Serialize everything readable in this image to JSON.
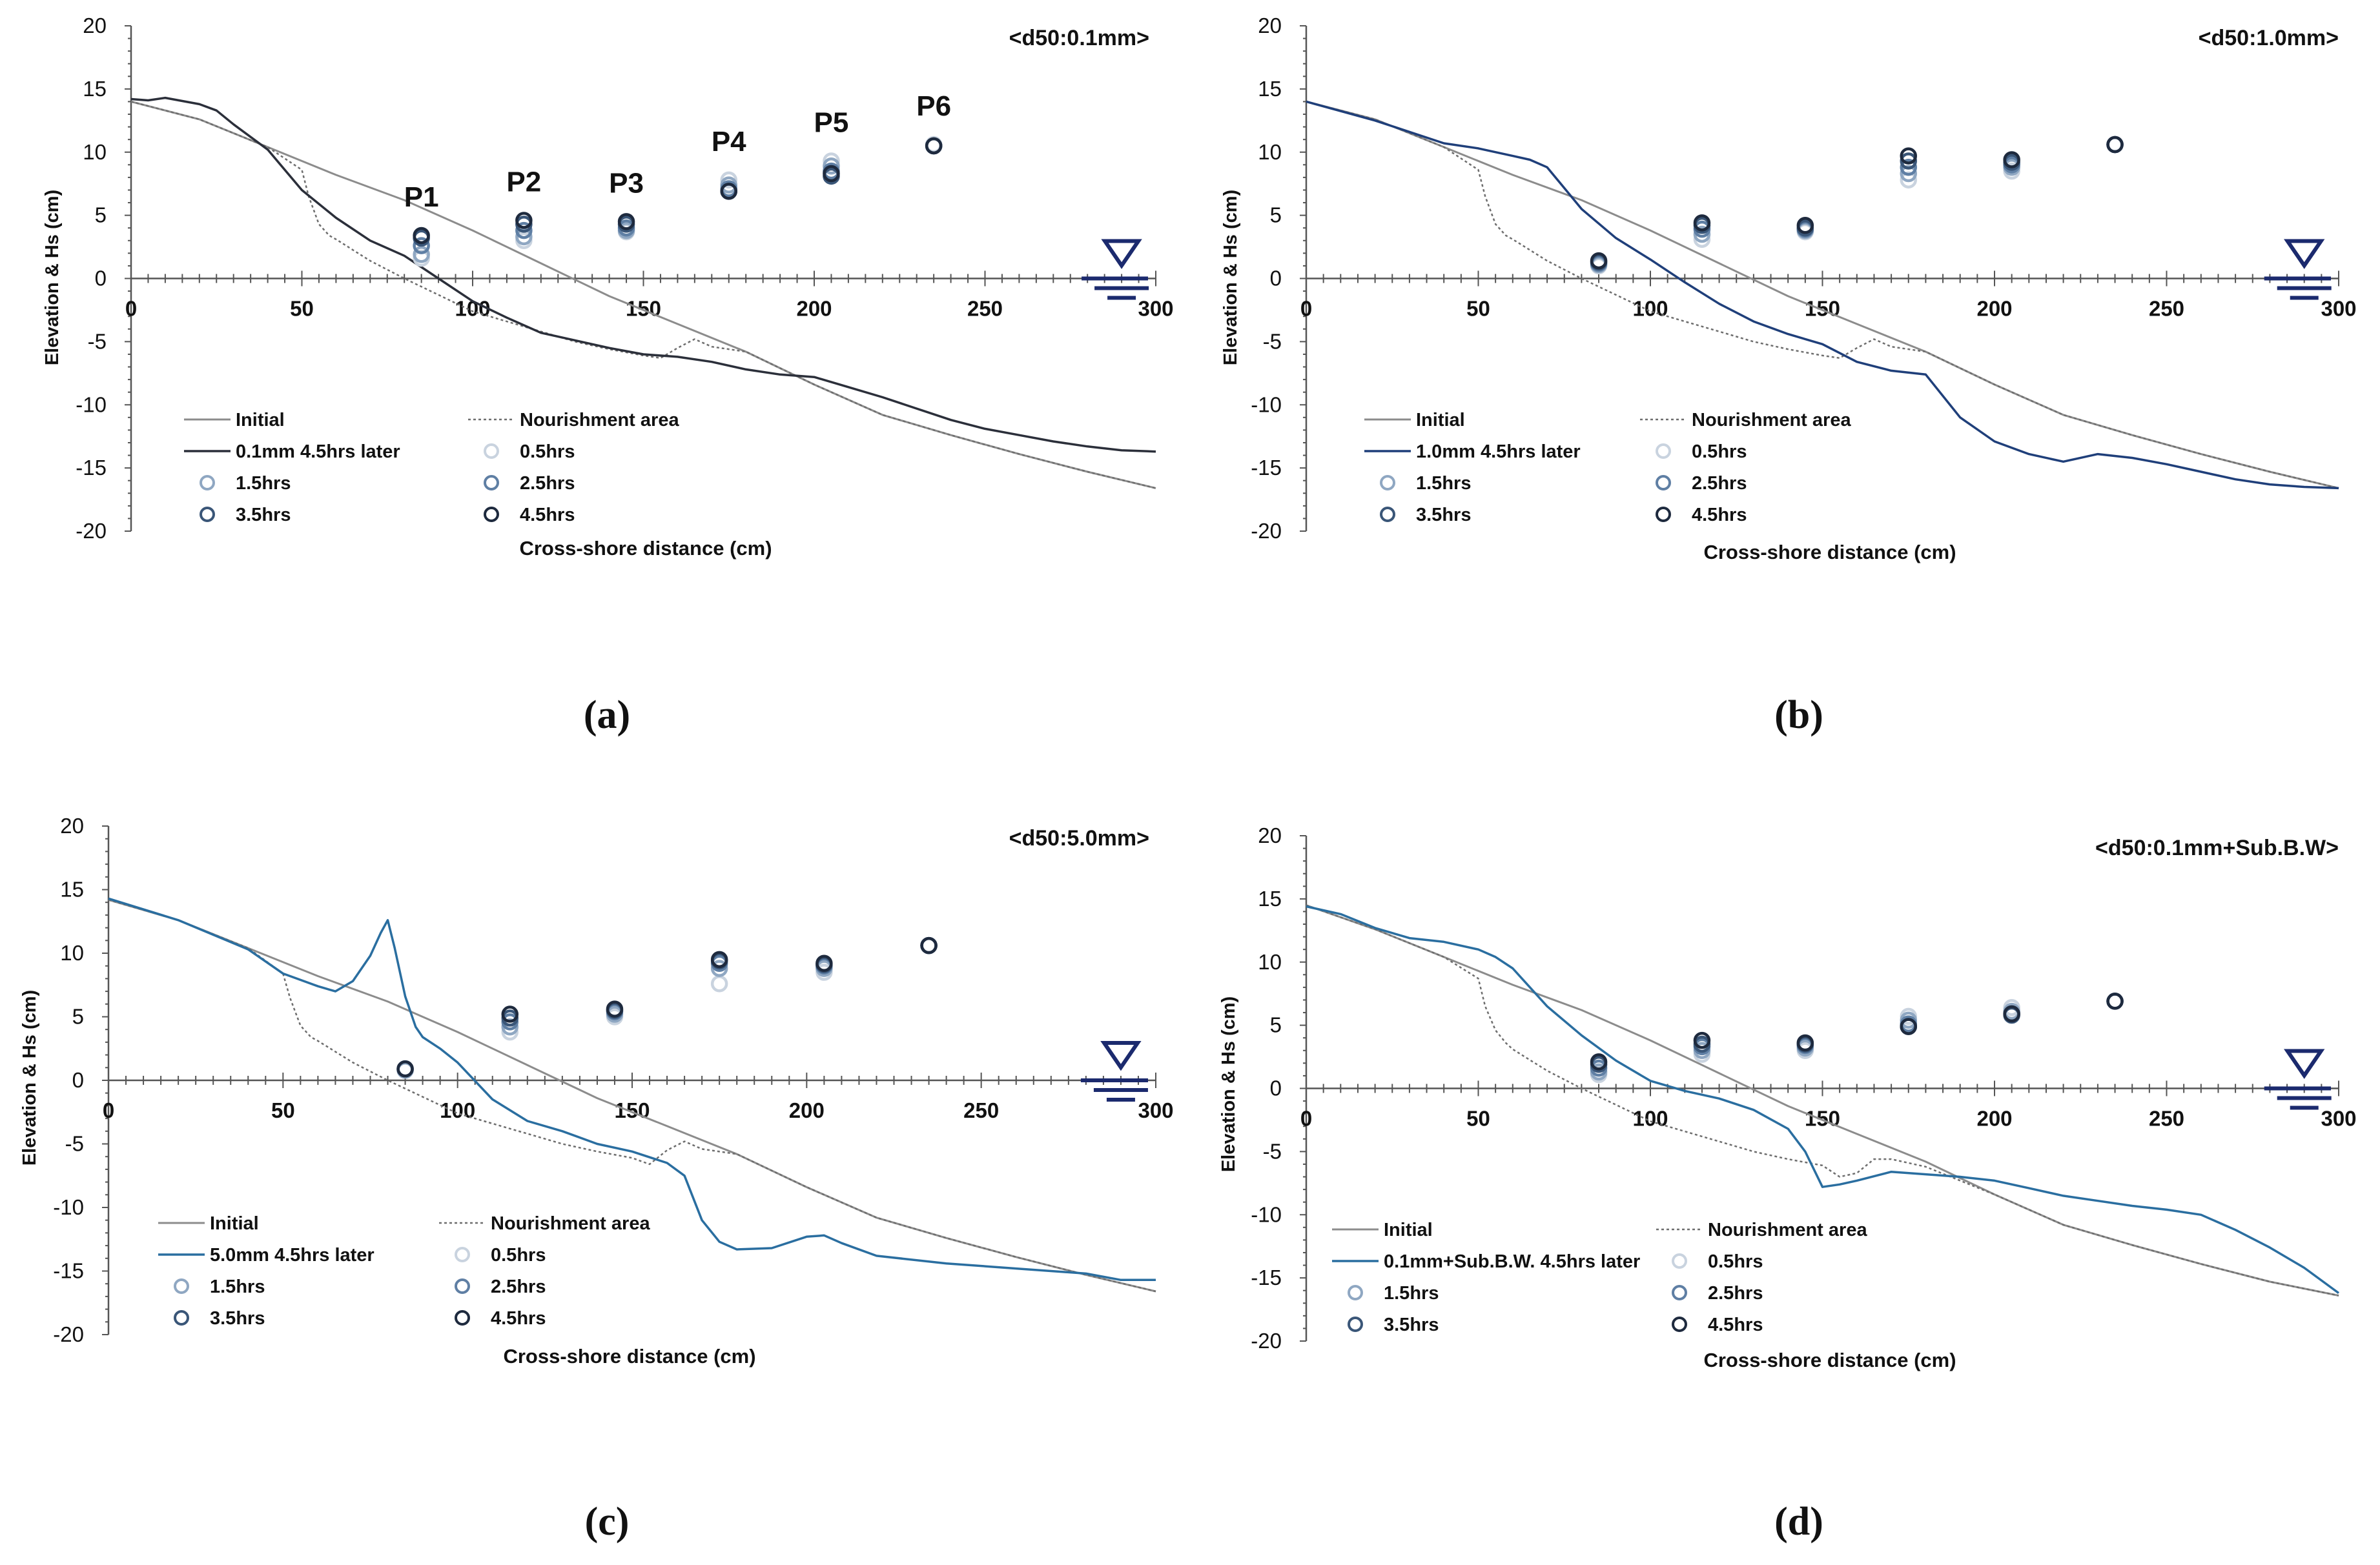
{
  "figure": {
    "yaxis_label": "Elevation & Hs (cm)",
    "xaxis_label": "Cross-shore distance (cm)",
    "xlim": [
      0,
      300
    ],
    "ylim": [
      -20,
      20
    ],
    "xticks": [
      0,
      50,
      100,
      150,
      200,
      250,
      300
    ],
    "yticks": [
      20,
      15,
      10,
      5,
      0,
      -5,
      -10,
      -15,
      -20
    ],
    "station_labels": [
      "P1",
      "P2",
      "P3",
      "P4",
      "P5",
      "P6"
    ],
    "legend_time_labels": [
      "0.5hrs",
      "1.5hrs",
      "2.5hrs",
      "3.5hrs",
      "4.5hrs"
    ],
    "legend_initial_label": "Initial",
    "legend_nourishment_label": "Nourishment area"
  },
  "colors": {
    "initial": "#8c8c8c",
    "nourishment": "#6e6e6e",
    "axis": "#555555",
    "profile_a": "#2b2f3a",
    "profile_blue": "#1f3f7a",
    "profile_teal": "#2a6ea0",
    "water_symbol": "#1b2a6e",
    "marker_colors": [
      "#c9d3df",
      "#8fa7c2",
      "#5f7fa4",
      "#3a5678",
      "#1e2a3e"
    ]
  },
  "chart_data": [
    {
      "type": "line",
      "panel_label": "(a)",
      "title": "<d50:0.1mm>",
      "profile_legend": "0.1mm 4.5hrs later",
      "profile_color_key": "profile_a",
      "show_station_labels": true,
      "series": [
        {
          "name": "Initial",
          "x": [
            0,
            20,
            40,
            60,
            80,
            100,
            120,
            140,
            160,
            180,
            200,
            220,
            240,
            260,
            280,
            300
          ],
          "y": [
            14,
            12.6,
            10.4,
            8.2,
            6.2,
            3.8,
            1.2,
            -1.4,
            -3.6,
            -5.8,
            -8.4,
            -10.8,
            -12.4,
            -13.9,
            -15.3,
            -16.6
          ]
        },
        {
          "name": "Nourishment area",
          "x": [
            0,
            20,
            40,
            50,
            52,
            55,
            58,
            60,
            70,
            80,
            90,
            100,
            110,
            120,
            130,
            140,
            150,
            155,
            160,
            165,
            170,
            180,
            200,
            220,
            240,
            260,
            280,
            300
          ],
          "y": [
            14,
            12.6,
            10.4,
            8.6,
            6.5,
            4.3,
            3.4,
            3.1,
            1.4,
            0,
            -1.3,
            -2.6,
            -3.4,
            -4.2,
            -5,
            -5.6,
            -6.1,
            -6.3,
            -5.5,
            -4.8,
            -5.4,
            -5.8,
            -8.4,
            -10.8,
            -12.4,
            -13.9,
            -15.3,
            -16.6
          ]
        },
        {
          "name": "0.1mm 4.5hrs later",
          "x": [
            0,
            5,
            10,
            20,
            25,
            30,
            40,
            50,
            60,
            70,
            80,
            90,
            100,
            110,
            120,
            130,
            140,
            150,
            160,
            170,
            180,
            190,
            200,
            210,
            220,
            230,
            240,
            250,
            260,
            270,
            280,
            290,
            300
          ],
          "y": [
            14.2,
            14.1,
            14.3,
            13.8,
            13.3,
            12.2,
            10.2,
            7,
            4.8,
            3,
            1.8,
            0,
            -1.8,
            -3.1,
            -4.3,
            -4.9,
            -5.5,
            -6,
            -6.2,
            -6.6,
            -7.2,
            -7.6,
            -7.8,
            -8.6,
            -9.4,
            -10.3,
            -11.2,
            -11.9,
            -12.4,
            -12.9,
            -13.3,
            -13.6,
            -13.7
          ]
        }
      ],
      "hs_points": [
        {
          "station": "P1",
          "x": 85,
          "hs": [
            1.6,
            1.9,
            2.6,
            3.2,
            3.4
          ]
        },
        {
          "station": "P2",
          "x": 115,
          "hs": [
            3.0,
            3.3,
            3.8,
            4.3,
            4.6
          ]
        },
        {
          "station": "P3",
          "x": 145,
          "hs": [
            3.7,
            3.8,
            4.0,
            4.3,
            4.5
          ]
        },
        {
          "station": "P4",
          "x": 175,
          "hs": [
            7.8,
            7.4,
            7.1,
            6.9,
            6.9
          ]
        },
        {
          "station": "P5",
          "x": 205,
          "hs": [
            9.3,
            8.9,
            8.5,
            8.1,
            8.3
          ]
        },
        {
          "station": "P6",
          "x": 235,
          "hs": [
            10.6,
            10.5,
            10.5,
            10.5,
            10.5
          ]
        }
      ]
    },
    {
      "type": "line",
      "panel_label": "(b)",
      "title": "<d50:1.0mm>",
      "profile_legend": "1.0mm 4.5hrs later",
      "profile_color_key": "profile_blue",
      "show_station_labels": false,
      "series": [
        {
          "name": "Initial",
          "x": [
            0,
            20,
            40,
            60,
            80,
            100,
            120,
            140,
            160,
            180,
            200,
            220,
            240,
            260,
            280,
            300
          ],
          "y": [
            14,
            12.6,
            10.4,
            8.2,
            6.2,
            3.8,
            1.2,
            -1.4,
            -3.6,
            -5.8,
            -8.4,
            -10.8,
            -12.4,
            -13.9,
            -15.3,
            -16.6
          ]
        },
        {
          "name": "Nourishment area",
          "x": [
            0,
            20,
            40,
            50,
            52,
            55,
            58,
            60,
            70,
            80,
            90,
            100,
            110,
            120,
            130,
            140,
            150,
            155,
            160,
            165,
            170,
            180,
            200,
            220,
            240,
            260,
            280,
            300
          ],
          "y": [
            14,
            12.6,
            10.4,
            8.6,
            6.5,
            4.3,
            3.4,
            3.1,
            1.4,
            0,
            -1.3,
            -2.6,
            -3.4,
            -4.2,
            -5,
            -5.6,
            -6.1,
            -6.3,
            -5.5,
            -4.8,
            -5.4,
            -5.8,
            -8.4,
            -10.8,
            -12.4,
            -13.9,
            -15.3,
            -16.6
          ]
        },
        {
          "name": "1.0mm 4.5hrs later",
          "x": [
            0,
            20,
            40,
            50,
            60,
            65,
            70,
            80,
            90,
            100,
            110,
            120,
            130,
            140,
            150,
            160,
            170,
            180,
            190,
            200,
            210,
            220,
            230,
            240,
            250,
            260,
            270,
            280,
            290,
            300
          ],
          "y": [
            14,
            12.5,
            10.7,
            10.3,
            9.7,
            9.4,
            8.8,
            5.5,
            3.2,
            1.5,
            -0.3,
            -2,
            -3.4,
            -4.4,
            -5.2,
            -6.6,
            -7.3,
            -7.6,
            -11,
            -12.9,
            -13.9,
            -14.5,
            -13.9,
            -14.2,
            -14.7,
            -15.3,
            -15.9,
            -16.3,
            -16.5,
            -16.6
          ]
        }
      ],
      "hs_points": [
        {
          "station": "P1",
          "x": 85,
          "hs": [
            1.0,
            1.1,
            1.2,
            1.3,
            1.4
          ]
        },
        {
          "station": "P2",
          "x": 115,
          "hs": [
            3.1,
            3.5,
            3.9,
            4.2,
            4.4
          ]
        },
        {
          "station": "P3",
          "x": 145,
          "hs": [
            3.7,
            3.8,
            3.9,
            4.0,
            4.2
          ]
        },
        {
          "station": "P4",
          "x": 175,
          "hs": [
            7.8,
            8.3,
            8.8,
            9.3,
            9.7
          ]
        },
        {
          "station": "P5",
          "x": 205,
          "hs": [
            8.5,
            8.8,
            9.0,
            9.2,
            9.4
          ]
        },
        {
          "station": "P6",
          "x": 235,
          "hs": [
            10.6,
            10.6,
            10.6,
            10.6,
            10.6
          ]
        }
      ]
    },
    {
      "type": "line",
      "panel_label": "(c)",
      "title": "<d50:5.0mm>",
      "profile_legend": "5.0mm 4.5hrs later",
      "profile_color_key": "profile_teal",
      "show_station_labels": false,
      "series": [
        {
          "name": "Initial",
          "x": [
            0,
            20,
            40,
            60,
            80,
            100,
            120,
            140,
            160,
            180,
            200,
            220,
            240,
            260,
            280,
            300
          ],
          "y": [
            14.2,
            12.6,
            10.4,
            8.2,
            6.2,
            3.8,
            1.2,
            -1.4,
            -3.6,
            -5.8,
            -8.4,
            -10.8,
            -12.4,
            -13.9,
            -15.3,
            -16.6
          ]
        },
        {
          "name": "Nourishment area",
          "x": [
            0,
            20,
            40,
            50,
            52,
            55,
            58,
            60,
            70,
            80,
            90,
            100,
            110,
            120,
            130,
            140,
            150,
            155,
            160,
            165,
            170,
            180,
            200,
            220,
            240,
            260,
            280,
            300
          ],
          "y": [
            14.2,
            12.6,
            10.4,
            8.4,
            6.5,
            4.3,
            3.4,
            3.1,
            1.4,
            0,
            -1.3,
            -2.6,
            -3.4,
            -4.2,
            -5,
            -5.6,
            -6.1,
            -6.6,
            -5.5,
            -4.8,
            -5.4,
            -5.8,
            -8.4,
            -10.8,
            -12.4,
            -13.9,
            -15.3,
            -16.6
          ]
        },
        {
          "name": "5.0mm 4.5hrs later",
          "x": [
            0,
            20,
            40,
            50,
            60,
            65,
            70,
            75,
            78,
            80,
            82,
            85,
            88,
            90,
            95,
            100,
            110,
            120,
            130,
            140,
            150,
            160,
            165,
            170,
            175,
            180,
            190,
            200,
            205,
            210,
            220,
            240,
            260,
            280,
            290,
            300
          ],
          "y": [
            14.3,
            12.6,
            10.3,
            8.4,
            7.4,
            7,
            7.8,
            9.8,
            11.6,
            12.6,
            10.4,
            6.6,
            4.2,
            3.4,
            2.5,
            1.4,
            -1.5,
            -3.2,
            -4,
            -5,
            -5.6,
            -6.5,
            -7.5,
            -11,
            -12.7,
            -13.3,
            -13.2,
            -12.3,
            -12.2,
            -12.8,
            -13.8,
            -14.4,
            -14.8,
            -15.2,
            -15.7,
            -15.7
          ]
        }
      ],
      "hs_points": [
        {
          "station": "P1",
          "x": 85,
          "hs": [
            0.8,
            0.8,
            0.9,
            0.9,
            0.9
          ]
        },
        {
          "station": "P2",
          "x": 115,
          "hs": [
            3.8,
            4.2,
            4.6,
            4.9,
            5.2
          ]
        },
        {
          "station": "P3",
          "x": 145,
          "hs": [
            5.0,
            5.2,
            5.4,
            5.5,
            5.6
          ]
        },
        {
          "station": "P4",
          "x": 175,
          "hs": [
            7.6,
            8.8,
            9.2,
            9.4,
            9.5
          ]
        },
        {
          "station": "P5",
          "x": 205,
          "hs": [
            8.5,
            8.8,
            9.0,
            9.1,
            9.2
          ]
        },
        {
          "station": "P6",
          "x": 235,
          "hs": [
            10.6,
            10.6,
            10.6,
            10.6,
            10.6
          ]
        }
      ]
    },
    {
      "type": "line",
      "panel_label": "(d)",
      "title": "<d50:0.1mm+Sub.B.W>",
      "profile_legend": "0.1mm+Sub.B.W. 4.5hrs later",
      "profile_color_key": "profile_teal",
      "show_station_labels": false,
      "series": [
        {
          "name": "Initial",
          "x": [
            0,
            20,
            40,
            60,
            80,
            100,
            120,
            140,
            160,
            180,
            200,
            220,
            240,
            260,
            280,
            300
          ],
          "y": [
            14.5,
            12.6,
            10.4,
            8.2,
            6.2,
            3.8,
            1.2,
            -1.4,
            -3.6,
            -5.8,
            -8.4,
            -10.8,
            -12.4,
            -13.9,
            -15.3,
            -16.4
          ]
        },
        {
          "name": "Nourishment area",
          "x": [
            0,
            20,
            40,
            50,
            52,
            55,
            58,
            60,
            70,
            80,
            90,
            100,
            110,
            120,
            130,
            140,
            150,
            155,
            160,
            165,
            170,
            180,
            200,
            220,
            240,
            260,
            280,
            300
          ],
          "y": [
            14.5,
            12.6,
            10.4,
            8.7,
            6.5,
            4.6,
            3.6,
            3.1,
            1.4,
            0,
            -1.3,
            -2.6,
            -3.4,
            -4.2,
            -5,
            -5.6,
            -6.1,
            -7,
            -6.7,
            -5.6,
            -5.6,
            -6.2,
            -8.4,
            -10.8,
            -12.4,
            -13.9,
            -15.3,
            -16.4
          ]
        },
        {
          "name": "0.1mm+Sub.B.W. 4.5hrs later",
          "x": [
            0,
            10,
            20,
            30,
            40,
            50,
            55,
            60,
            70,
            80,
            90,
            100,
            110,
            120,
            130,
            140,
            145,
            150,
            155,
            160,
            170,
            180,
            190,
            200,
            210,
            220,
            230,
            240,
            250,
            260,
            270,
            280,
            290,
            300
          ],
          "y": [
            14.4,
            13.8,
            12.7,
            11.9,
            11.6,
            11,
            10.4,
            9.5,
            6.5,
            4.2,
            2.2,
            0.6,
            -0.2,
            -0.8,
            -1.7,
            -3.2,
            -5,
            -7.8,
            -7.6,
            -7.3,
            -6.6,
            -6.8,
            -7,
            -7.3,
            -7.9,
            -8.5,
            -8.9,
            -9.3,
            -9.6,
            -10,
            -11.2,
            -12.6,
            -14.2,
            -16.2
          ]
        }
      ],
      "hs_points": [
        {
          "station": "P1",
          "x": 85,
          "hs": [
            1.1,
            1.3,
            1.6,
            1.9,
            2.1
          ]
        },
        {
          "station": "P2",
          "x": 115,
          "hs": [
            2.7,
            3.0,
            3.3,
            3.5,
            3.8
          ]
        },
        {
          "station": "P3",
          "x": 145,
          "hs": [
            3.0,
            3.2,
            3.4,
            3.5,
            3.6
          ]
        },
        {
          "station": "P4",
          "x": 175,
          "hs": [
            5.7,
            5.4,
            5.1,
            4.9,
            4.9
          ]
        },
        {
          "station": "P5",
          "x": 205,
          "hs": [
            6.4,
            6.1,
            5.9,
            5.8,
            5.9
          ]
        },
        {
          "station": "P6",
          "x": 235,
          "hs": [
            6.9,
            6.9,
            6.9,
            6.9,
            6.9
          ]
        }
      ]
    }
  ]
}
